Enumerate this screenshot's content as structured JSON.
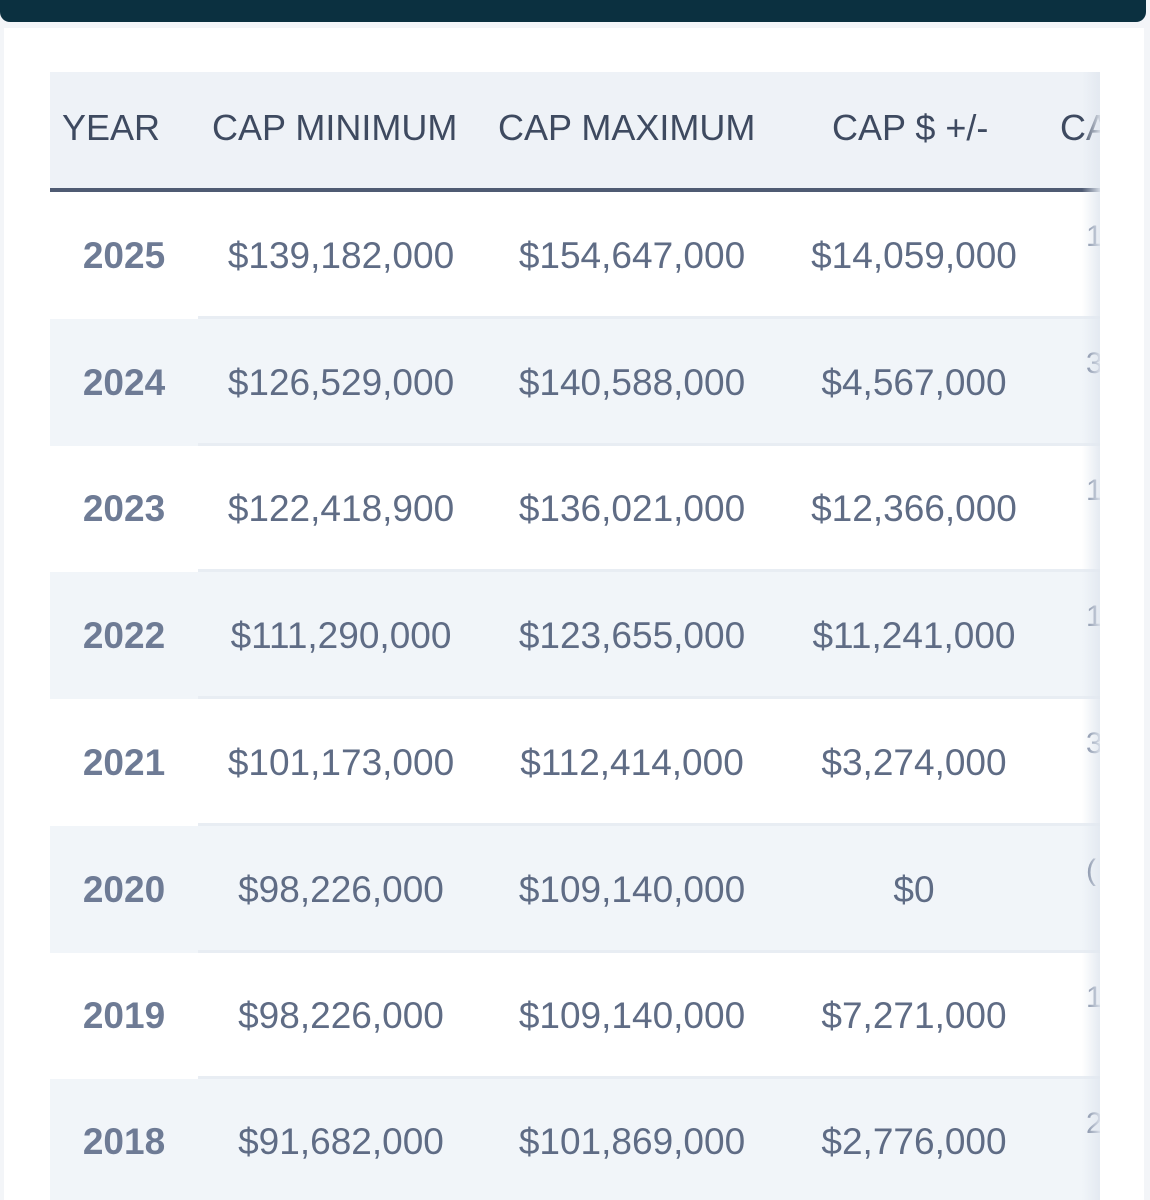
{
  "table": {
    "headers": [
      "YEAR",
      "CAP MINIMUM",
      "CAP MAXIMUM",
      "CAP $ +/-",
      "CA"
    ],
    "rows": [
      {
        "year": "2025",
        "min": "$139,182,000",
        "max": "$154,647,000",
        "delta": "$14,059,000",
        "next": "1"
      },
      {
        "year": "2024",
        "min": "$126,529,000",
        "max": "$140,588,000",
        "delta": "$4,567,000",
        "next": "3"
      },
      {
        "year": "2023",
        "min": "$122,418,900",
        "max": "$136,021,000",
        "delta": "$12,366,000",
        "next": "1"
      },
      {
        "year": "2022",
        "min": "$111,290,000",
        "max": "$123,655,000",
        "delta": "$11,241,000",
        "next": "1"
      },
      {
        "year": "2021",
        "min": "$101,173,000",
        "max": "$112,414,000",
        "delta": "$3,274,000",
        "next": "3"
      },
      {
        "year": "2020",
        "min": "$98,226,000",
        "max": "$109,140,000",
        "delta": "$0",
        "next": "("
      },
      {
        "year": "2019",
        "min": "$98,226,000",
        "max": "$109,140,000",
        "delta": "$7,271,000",
        "next": "1"
      },
      {
        "year": "2018",
        "min": "$91,682,000",
        "max": "$101,869,000",
        "delta": "$2,776,000",
        "next": "2"
      }
    ]
  }
}
